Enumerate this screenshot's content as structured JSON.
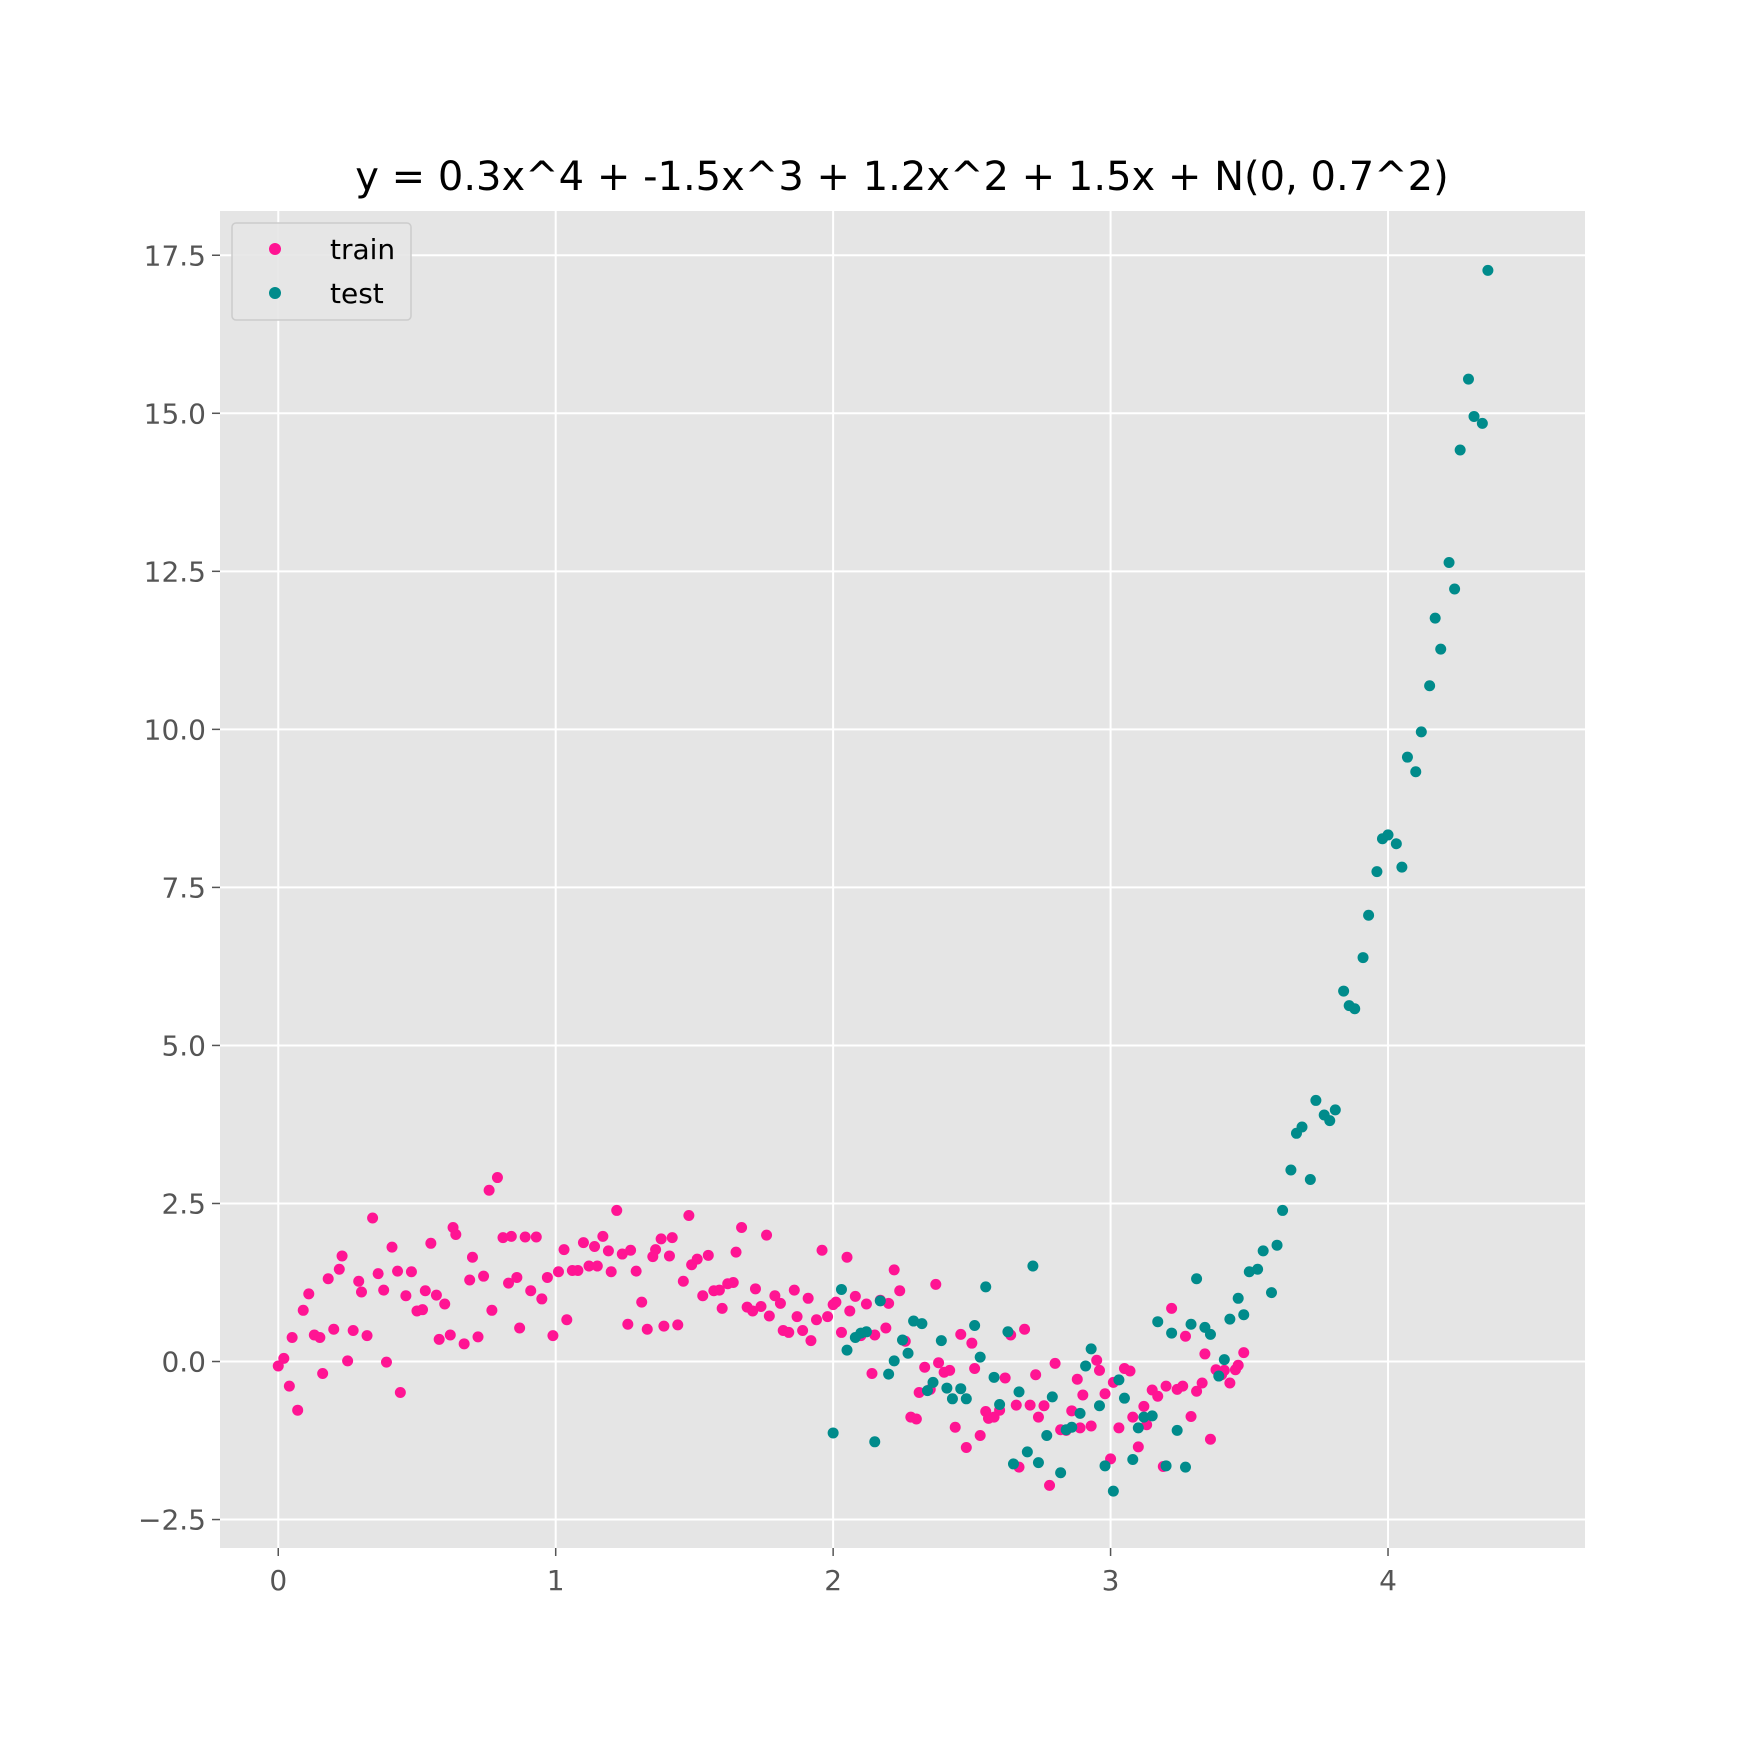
{
  "chart_data": {
    "type": "scatter",
    "title": "y = 0.3x^4 + -1.5x^3 + 1.2x^2 + 1.5x + N(0, 0.7^2)",
    "xlabel": "",
    "ylabel": "",
    "xlim": [
      -0.21,
      4.71
    ],
    "ylim": [
      -2.95,
      18.2
    ],
    "xticks": [
      0,
      1,
      2,
      3,
      4
    ],
    "xtick_labels": [
      "0",
      "1",
      "2",
      "3",
      "4"
    ],
    "yticks": [
      -2.5,
      0.0,
      2.5,
      5.0,
      7.5,
      10.0,
      12.5,
      15.0,
      17.5
    ],
    "ytick_labels": [
      "−2.5",
      "0.0",
      "2.5",
      "5.0",
      "7.5",
      "10.0",
      "12.5",
      "15.0",
      "17.5"
    ],
    "grid": true,
    "background": "#e5e5e5",
    "legend_position": "top-left",
    "series": [
      {
        "name": "train",
        "color": "#ff1493",
        "points": [
          [
            0.0,
            -0.07
          ],
          [
            0.02,
            0.05
          ],
          [
            0.04,
            -0.39
          ],
          [
            0.05,
            0.38
          ],
          [
            0.07,
            -0.77
          ],
          [
            0.09,
            0.81
          ],
          [
            0.11,
            1.07
          ],
          [
            0.13,
            0.42
          ],
          [
            0.15,
            0.38
          ],
          [
            0.16,
            -0.19
          ],
          [
            0.18,
            1.31
          ],
          [
            0.2,
            0.51
          ],
          [
            0.22,
            1.46
          ],
          [
            0.23,
            1.67
          ],
          [
            0.25,
            0.01
          ],
          [
            0.27,
            0.49
          ],
          [
            0.29,
            1.27
          ],
          [
            0.3,
            1.1
          ],
          [
            0.32,
            0.41
          ],
          [
            0.34,
            2.27
          ],
          [
            0.36,
            1.39
          ],
          [
            0.38,
            1.13
          ],
          [
            0.39,
            -0.01
          ],
          [
            0.41,
            1.81
          ],
          [
            0.43,
            1.43
          ],
          [
            0.44,
            -0.49
          ],
          [
            0.46,
            1.04
          ],
          [
            0.48,
            1.42
          ],
          [
            0.5,
            0.8
          ],
          [
            0.52,
            0.82
          ],
          [
            0.53,
            1.12
          ],
          [
            0.55,
            1.87
          ],
          [
            0.57,
            1.05
          ],
          [
            0.58,
            0.35
          ],
          [
            0.6,
            0.91
          ],
          [
            0.62,
            0.42
          ],
          [
            0.63,
            2.12
          ],
          [
            0.64,
            2.01
          ],
          [
            0.67,
            0.28
          ],
          [
            0.69,
            1.29
          ],
          [
            0.7,
            1.65
          ],
          [
            0.72,
            0.39
          ],
          [
            0.74,
            1.35
          ],
          [
            0.76,
            2.71
          ],
          [
            0.77,
            0.81
          ],
          [
            0.79,
            2.91
          ],
          [
            0.81,
            1.96
          ],
          [
            0.83,
            1.24
          ],
          [
            0.84,
            1.98
          ],
          [
            0.86,
            1.33
          ],
          [
            0.87,
            0.53
          ],
          [
            0.89,
            1.97
          ],
          [
            0.91,
            1.12
          ],
          [
            0.93,
            1.97
          ],
          [
            0.95,
            0.99
          ],
          [
            0.97,
            1.33
          ],
          [
            0.99,
            0.41
          ],
          [
            1.01,
            1.42
          ],
          [
            1.03,
            1.77
          ],
          [
            1.04,
            0.66
          ],
          [
            1.06,
            1.44
          ],
          [
            1.08,
            1.44
          ],
          [
            1.1,
            1.88
          ],
          [
            1.12,
            1.51
          ],
          [
            1.14,
            1.82
          ],
          [
            1.15,
            1.51
          ],
          [
            1.17,
            1.98
          ],
          [
            1.19,
            1.75
          ],
          [
            1.2,
            1.42
          ],
          [
            1.22,
            2.39
          ],
          [
            1.24,
            1.7
          ],
          [
            1.26,
            0.59
          ],
          [
            1.27,
            1.76
          ],
          [
            1.29,
            1.43
          ],
          [
            1.31,
            0.94
          ],
          [
            1.33,
            0.51
          ],
          [
            1.35,
            1.66
          ],
          [
            1.36,
            1.77
          ],
          [
            1.38,
            1.94
          ],
          [
            1.39,
            0.56
          ],
          [
            1.41,
            1.67
          ],
          [
            1.42,
            1.96
          ],
          [
            1.44,
            0.58
          ],
          [
            1.46,
            1.27
          ],
          [
            1.48,
            2.31
          ],
          [
            1.49,
            1.53
          ],
          [
            1.51,
            1.62
          ],
          [
            1.53,
            1.04
          ],
          [
            1.55,
            1.68
          ],
          [
            1.57,
            1.12
          ],
          [
            1.59,
            1.13
          ],
          [
            1.6,
            0.84
          ],
          [
            1.62,
            1.23
          ],
          [
            1.64,
            1.25
          ],
          [
            1.65,
            1.73
          ],
          [
            1.67,
            2.12
          ],
          [
            1.69,
            0.86
          ],
          [
            1.71,
            0.8
          ],
          [
            1.72,
            1.15
          ],
          [
            1.74,
            0.87
          ],
          [
            1.76,
            2.0
          ],
          [
            1.77,
            0.72
          ],
          [
            1.79,
            1.04
          ],
          [
            1.81,
            0.92
          ],
          [
            1.82,
            0.49
          ],
          [
            1.84,
            0.46
          ],
          [
            1.86,
            1.13
          ],
          [
            1.87,
            0.71
          ],
          [
            1.89,
            0.49
          ],
          [
            1.91,
            1.0
          ],
          [
            1.92,
            0.33
          ],
          [
            1.94,
            0.66
          ],
          [
            1.96,
            1.76
          ],
          [
            1.98,
            0.71
          ],
          [
            2.0,
            0.9
          ],
          [
            2.01,
            0.94
          ],
          [
            2.03,
            0.46
          ],
          [
            2.05,
            1.65
          ],
          [
            2.06,
            0.8
          ],
          [
            2.08,
            1.03
          ],
          [
            2.1,
            0.41
          ],
          [
            2.12,
            0.91
          ],
          [
            2.14,
            -0.19
          ],
          [
            2.15,
            0.42
          ],
          [
            2.17,
            0.97
          ],
          [
            2.19,
            0.53
          ],
          [
            2.2,
            0.92
          ],
          [
            2.22,
            1.45
          ],
          [
            2.24,
            1.12
          ],
          [
            2.26,
            0.32
          ],
          [
            2.28,
            -0.88
          ],
          [
            2.3,
            -0.91
          ],
          [
            2.31,
            -0.49
          ],
          [
            2.33,
            -0.09
          ],
          [
            2.35,
            -0.44
          ],
          [
            2.37,
            1.22
          ],
          [
            2.38,
            -0.02
          ],
          [
            2.4,
            -0.17
          ],
          [
            2.42,
            -0.14
          ],
          [
            2.44,
            -1.04
          ],
          [
            2.46,
            0.43
          ],
          [
            2.48,
            -1.36
          ],
          [
            2.5,
            0.29
          ],
          [
            2.51,
            -0.11
          ],
          [
            2.53,
            -1.17
          ],
          [
            2.55,
            -0.79
          ],
          [
            2.56,
            -0.9
          ],
          [
            2.58,
            -0.88
          ],
          [
            2.6,
            -0.77
          ],
          [
            2.62,
            -0.26
          ],
          [
            2.64,
            0.42
          ],
          [
            2.66,
            -0.69
          ],
          [
            2.67,
            -1.67
          ],
          [
            2.69,
            0.51
          ],
          [
            2.71,
            -0.69
          ],
          [
            2.73,
            -0.21
          ],
          [
            2.74,
            -0.88
          ],
          [
            2.76,
            -0.7
          ],
          [
            2.78,
            -1.96
          ],
          [
            2.8,
            -0.03
          ],
          [
            2.82,
            -1.08
          ],
          [
            2.84,
            -1.09
          ],
          [
            2.86,
            -0.78
          ],
          [
            2.88,
            -0.28
          ],
          [
            2.89,
            -1.05
          ],
          [
            2.9,
            -0.53
          ],
          [
            2.93,
            -1.02
          ],
          [
            2.95,
            0.02
          ],
          [
            2.96,
            -0.14
          ],
          [
            2.98,
            -0.51
          ],
          [
            3.0,
            -1.54
          ],
          [
            3.01,
            -0.33
          ],
          [
            3.03,
            -1.05
          ],
          [
            3.05,
            -0.11
          ],
          [
            3.07,
            -0.15
          ],
          [
            3.08,
            -0.88
          ],
          [
            3.1,
            -1.35
          ],
          [
            3.12,
            -0.71
          ],
          [
            3.13,
            -1.0
          ],
          [
            3.15,
            -0.45
          ],
          [
            3.17,
            -0.55
          ],
          [
            3.19,
            -1.66
          ],
          [
            3.2,
            -0.39
          ],
          [
            3.22,
            0.84
          ],
          [
            3.24,
            -0.44
          ],
          [
            3.26,
            -0.39
          ],
          [
            3.27,
            0.4
          ],
          [
            3.29,
            -0.87
          ],
          [
            3.31,
            -0.47
          ],
          [
            3.33,
            -0.34
          ],
          [
            3.34,
            0.12
          ],
          [
            3.36,
            -1.23
          ],
          [
            3.38,
            -0.13
          ],
          [
            3.4,
            -0.21
          ],
          [
            3.41,
            -0.14
          ],
          [
            3.43,
            -0.34
          ],
          [
            3.45,
            -0.13
          ],
          [
            3.46,
            -0.06
          ],
          [
            3.48,
            0.14
          ]
        ]
      },
      {
        "name": "test",
        "color": "#008b8b",
        "points": [
          [
            2.0,
            -1.13
          ],
          [
            2.03,
            1.14
          ],
          [
            2.05,
            0.18
          ],
          [
            2.08,
            0.38
          ],
          [
            2.1,
            0.45
          ],
          [
            2.12,
            0.47
          ],
          [
            2.15,
            -1.27
          ],
          [
            2.17,
            0.96
          ],
          [
            2.2,
            -0.2
          ],
          [
            2.22,
            0.01
          ],
          [
            2.25,
            0.34
          ],
          [
            2.27,
            0.13
          ],
          [
            2.29,
            0.64
          ],
          [
            2.32,
            0.6
          ],
          [
            2.34,
            -0.46
          ],
          [
            2.36,
            -0.33
          ],
          [
            2.39,
            0.33
          ],
          [
            2.41,
            -0.42
          ],
          [
            2.43,
            -0.59
          ],
          [
            2.46,
            -0.43
          ],
          [
            2.48,
            -0.59
          ],
          [
            2.51,
            0.57
          ],
          [
            2.53,
            0.07
          ],
          [
            2.55,
            1.18
          ],
          [
            2.58,
            -0.25
          ],
          [
            2.6,
            -0.68
          ],
          [
            2.63,
            0.47
          ],
          [
            2.65,
            -1.62
          ],
          [
            2.67,
            -0.48
          ],
          [
            2.7,
            -1.43
          ],
          [
            2.72,
            1.51
          ],
          [
            2.74,
            -1.6
          ],
          [
            2.77,
            -1.17
          ],
          [
            2.79,
            -0.56
          ],
          [
            2.82,
            -1.76
          ],
          [
            2.84,
            -1.08
          ],
          [
            2.86,
            -1.04
          ],
          [
            2.89,
            -0.82
          ],
          [
            2.91,
            -0.07
          ],
          [
            2.93,
            0.2
          ],
          [
            2.96,
            -0.7
          ],
          [
            2.98,
            -1.65
          ],
          [
            3.01,
            -2.05
          ],
          [
            3.03,
            -0.29
          ],
          [
            3.05,
            -0.58
          ],
          [
            3.08,
            -1.55
          ],
          [
            3.1,
            -1.05
          ],
          [
            3.12,
            -0.88
          ],
          [
            3.15,
            -0.86
          ],
          [
            3.17,
            0.63
          ],
          [
            3.2,
            -1.65
          ],
          [
            3.22,
            0.45
          ],
          [
            3.24,
            -1.09
          ],
          [
            3.27,
            -1.67
          ],
          [
            3.29,
            0.59
          ],
          [
            3.31,
            1.31
          ],
          [
            3.34,
            0.54
          ],
          [
            3.36,
            0.43
          ],
          [
            3.39,
            -0.23
          ],
          [
            3.41,
            0.03
          ],
          [
            3.43,
            0.67
          ],
          [
            3.46,
            1.0
          ],
          [
            3.48,
            0.74
          ],
          [
            3.5,
            1.42
          ],
          [
            3.53,
            1.46
          ],
          [
            3.55,
            1.75
          ],
          [
            3.58,
            1.09
          ],
          [
            3.6,
            1.84
          ],
          [
            3.62,
            2.39
          ],
          [
            3.65,
            3.03
          ],
          [
            3.67,
            3.61
          ],
          [
            3.69,
            3.71
          ],
          [
            3.72,
            2.88
          ],
          [
            3.74,
            4.13
          ],
          [
            3.77,
            3.9
          ],
          [
            3.79,
            3.81
          ],
          [
            3.81,
            3.98
          ],
          [
            3.84,
            5.86
          ],
          [
            3.86,
            5.63
          ],
          [
            3.88,
            5.58
          ],
          [
            3.91,
            6.39
          ],
          [
            3.93,
            7.06
          ],
          [
            3.96,
            7.75
          ],
          [
            3.98,
            8.27
          ],
          [
            4.0,
            8.33
          ],
          [
            4.03,
            8.19
          ],
          [
            4.05,
            7.82
          ],
          [
            4.07,
            9.56
          ],
          [
            4.1,
            9.33
          ],
          [
            4.12,
            9.96
          ],
          [
            4.15,
            10.69
          ],
          [
            4.17,
            11.76
          ],
          [
            4.19,
            11.27
          ],
          [
            4.22,
            12.64
          ],
          [
            4.24,
            12.22
          ],
          [
            4.26,
            14.42
          ],
          [
            4.29,
            15.54
          ],
          [
            4.31,
            14.95
          ],
          [
            4.34,
            14.84
          ],
          [
            4.36,
            17.26
          ]
        ]
      }
    ]
  }
}
